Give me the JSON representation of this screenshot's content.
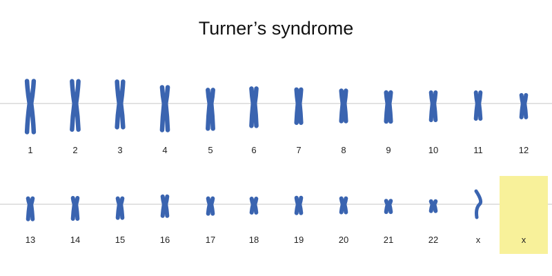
{
  "title": "Turner’s syndrome",
  "colors": {
    "chromosome": "#3a64b0",
    "chromosome_edge": "#2b4f93",
    "missing_highlight": "#f8f19a",
    "baseline": "#c4c4c4",
    "label": "#222222"
  },
  "rows": [
    {
      "chromosomes": [
        {
          "label": "1"
        },
        {
          "label": "2"
        },
        {
          "label": "3"
        },
        {
          "label": "4"
        },
        {
          "label": "5"
        },
        {
          "label": "6"
        },
        {
          "label": "7"
        },
        {
          "label": "8"
        },
        {
          "label": "9"
        },
        {
          "label": "10"
        },
        {
          "label": "11"
        },
        {
          "label": "12"
        }
      ]
    },
    {
      "chromosomes": [
        {
          "label": "13"
        },
        {
          "label": "14"
        },
        {
          "label": "15"
        },
        {
          "label": "16"
        },
        {
          "label": "17"
        },
        {
          "label": "18"
        },
        {
          "label": "19"
        },
        {
          "label": "20"
        },
        {
          "label": "21"
        },
        {
          "label": "22"
        },
        {
          "label": "x"
        },
        {
          "label": "x",
          "missing": true
        }
      ]
    }
  ]
}
